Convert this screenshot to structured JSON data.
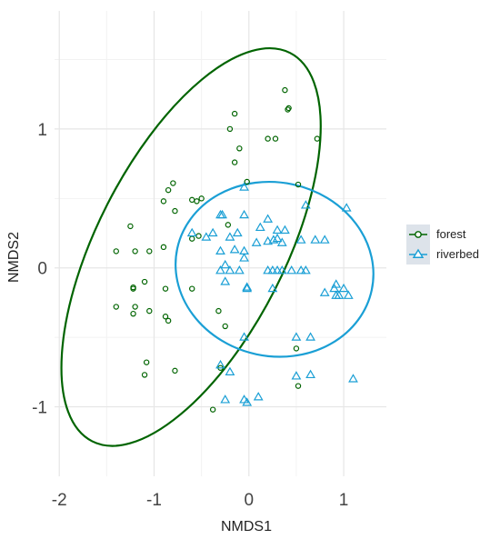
{
  "chart_data": {
    "type": "scatter",
    "title": "",
    "xlabel": "NMDS1",
    "ylabel": "NMDS2",
    "xlim": [
      -2.05,
      1.45
    ],
    "ylim": [
      -1.5,
      1.85
    ],
    "x_ticks": [
      -2,
      -1,
      0,
      1
    ],
    "x_tick_labels": [
      "-2",
      "-1",
      "0",
      "1"
    ],
    "y_ticks": [
      -1,
      0,
      1
    ],
    "y_tick_labels": [
      "-1",
      "0",
      "1"
    ],
    "grid": true,
    "legend_position": "right",
    "series": [
      {
        "name": "forest",
        "color": "#006400",
        "marker": "circle",
        "ellipse": {
          "center": [
            -0.7,
            0.15
          ],
          "x_range": [
            -1.95,
            0.73
          ],
          "y_range": [
            -1.33,
            1.63
          ]
        },
        "points": [
          [
            0.38,
            1.28
          ],
          [
            0.42,
            1.15
          ],
          [
            0.41,
            1.14
          ],
          [
            -0.15,
            1.11
          ],
          [
            -0.2,
            1.0
          ],
          [
            0.2,
            0.93
          ],
          [
            0.28,
            0.93
          ],
          [
            0.72,
            0.93
          ],
          [
            -0.1,
            0.86
          ],
          [
            -0.15,
            0.76
          ],
          [
            -0.8,
            0.61
          ],
          [
            -0.85,
            0.56
          ],
          [
            -0.9,
            0.48
          ],
          [
            -0.6,
            0.49
          ],
          [
            -0.55,
            0.48
          ],
          [
            -0.5,
            0.5
          ],
          [
            -0.78,
            0.41
          ],
          [
            -0.53,
            0.23
          ],
          [
            -0.6,
            0.21
          ],
          [
            -0.22,
            0.31
          ],
          [
            0.52,
            0.6
          ],
          [
            -0.02,
            0.62
          ],
          [
            -1.25,
            0.3
          ],
          [
            -1.4,
            0.12
          ],
          [
            -1.2,
            0.12
          ],
          [
            -1.05,
            0.12
          ],
          [
            -0.9,
            0.15
          ],
          [
            -1.1,
            -0.1
          ],
          [
            -1.22,
            -0.14
          ],
          [
            -1.22,
            -0.15
          ],
          [
            -0.88,
            -0.15
          ],
          [
            -0.6,
            -0.15
          ],
          [
            -1.4,
            -0.28
          ],
          [
            -1.2,
            -0.28
          ],
          [
            -1.22,
            -0.33
          ],
          [
            -1.05,
            -0.31
          ],
          [
            -0.88,
            -0.35
          ],
          [
            -0.85,
            -0.38
          ],
          [
            -0.32,
            -0.31
          ],
          [
            -0.25,
            -0.42
          ],
          [
            -1.08,
            -0.68
          ],
          [
            -1.1,
            -0.77
          ],
          [
            -0.78,
            -0.74
          ],
          [
            -0.3,
            -0.72
          ],
          [
            0.5,
            -0.58
          ],
          [
            -0.38,
            -1.02
          ],
          [
            0.52,
            -0.85
          ]
        ]
      },
      {
        "name": "riverbed",
        "color": "#1a9fd5",
        "marker": "triangle",
        "ellipse": {
          "center": [
            0.05,
            0.05
          ],
          "x_range": [
            -0.8,
            1.34
          ],
          "y_range": [
            -0.6,
            0.58
          ]
        },
        "points": [
          [
            -0.05,
            0.58
          ],
          [
            -0.3,
            0.38
          ],
          [
            -0.28,
            0.38
          ],
          [
            -0.05,
            0.38
          ],
          [
            0.6,
            0.45
          ],
          [
            0.2,
            0.35
          ],
          [
            -0.12,
            0.25
          ],
          [
            0.12,
            0.29
          ],
          [
            0.3,
            0.27
          ],
          [
            0.38,
            0.27
          ],
          [
            0.08,
            0.18
          ],
          [
            0.2,
            0.19
          ],
          [
            0.26,
            0.2
          ],
          [
            0.3,
            0.21
          ],
          [
            0.35,
            0.18
          ],
          [
            0.55,
            0.2
          ],
          [
            0.7,
            0.2
          ],
          [
            0.8,
            0.2
          ],
          [
            -0.6,
            0.25
          ],
          [
            -0.45,
            0.22
          ],
          [
            -0.38,
            0.25
          ],
          [
            -0.2,
            0.22
          ],
          [
            1.03,
            0.43
          ],
          [
            -0.3,
            0.12
          ],
          [
            -0.15,
            0.13
          ],
          [
            -0.05,
            0.12
          ],
          [
            -0.05,
            0.07
          ],
          [
            -0.25,
            0.02
          ],
          [
            -0.3,
            -0.02
          ],
          [
            -0.2,
            -0.02
          ],
          [
            -0.1,
            -0.02
          ],
          [
            0.2,
            -0.02
          ],
          [
            0.25,
            -0.02
          ],
          [
            0.3,
            -0.02
          ],
          [
            0.35,
            -0.02
          ],
          [
            0.45,
            -0.02
          ],
          [
            0.55,
            -0.02
          ],
          [
            0.6,
            -0.02
          ],
          [
            -0.25,
            -0.1
          ],
          [
            -0.02,
            -0.14
          ],
          [
            -0.02,
            -0.15
          ],
          [
            0.25,
            -0.15
          ],
          [
            0.8,
            -0.18
          ],
          [
            0.9,
            -0.15
          ],
          [
            0.92,
            -0.2
          ],
          [
            0.95,
            -0.2
          ],
          [
            1.0,
            -0.15
          ],
          [
            1.05,
            -0.2
          ],
          [
            0.92,
            -0.12
          ],
          [
            0.5,
            -0.5
          ],
          [
            0.65,
            -0.5
          ],
          [
            -0.3,
            -0.7
          ],
          [
            -0.2,
            -0.75
          ],
          [
            -0.05,
            -0.5
          ],
          [
            0.65,
            -0.77
          ],
          [
            1.1,
            -0.8
          ],
          [
            -0.25,
            -0.95
          ],
          [
            -0.05,
            -0.95
          ],
          [
            -0.02,
            -0.97
          ],
          [
            0.1,
            -0.93
          ],
          [
            0.5,
            -0.78
          ]
        ]
      }
    ]
  }
}
